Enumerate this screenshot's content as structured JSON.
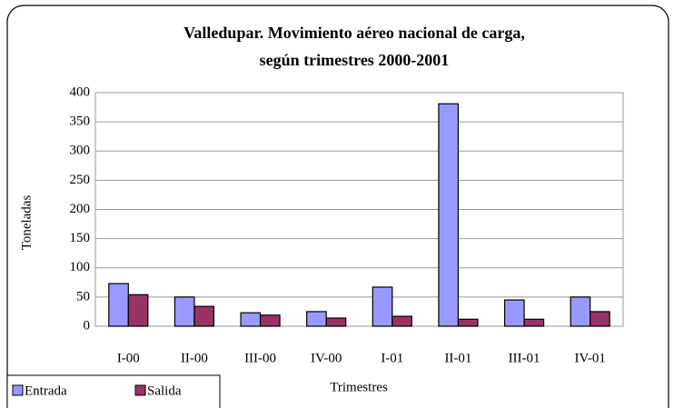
{
  "chart_data": {
    "type": "bar",
    "title": "Valledupar. Movimiento aéreo nacional de carga,",
    "subtitle": "según trimestres 2000-2001",
    "x_label": "Trimestres",
    "y_label": "Toneladas",
    "categories": [
      "I-00",
      "II-00",
      "III-00",
      "IV-00",
      "I-01",
      "II-01",
      "III-01",
      "IV-01"
    ],
    "series": [
      {
        "name": "Entrada",
        "color": "#9999ff",
        "values": [
          73,
          50,
          23,
          25,
          67,
          381,
          45,
          50
        ]
      },
      {
        "name": "Salida",
        "color": "#993366",
        "values": [
          54,
          34,
          19,
          14,
          17,
          12,
          12,
          25
        ]
      }
    ],
    "ylim": [
      0,
      400
    ],
    "yticks": [
      0,
      50,
      100,
      150,
      200,
      250,
      300,
      350,
      400
    ],
    "grid": true,
    "legend": "bottom-left"
  }
}
